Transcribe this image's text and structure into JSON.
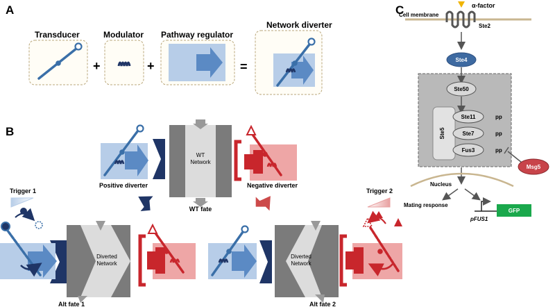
{
  "panels": {
    "a": {
      "letter": "A",
      "transducer_label": "Transducer",
      "modulator_label": "Modulator",
      "regulator_label": "Pathway regulator",
      "diverter_label": "Network diverter",
      "plus": "+",
      "equals": "="
    },
    "b": {
      "letter": "B",
      "wt_network_line1": "WT",
      "wt_network_line2": "Network",
      "positive_diverter": "Positive diverter",
      "negative_diverter": "Negative diverter",
      "wt_fate": "WT fate",
      "trigger1": "Trigger 1",
      "trigger2": "Trigger 2",
      "diverted_line1": "Diverted",
      "diverted_line2": "Network",
      "alt_fate1": "Alt fate 1",
      "alt_fate2": "Alt fate 2"
    },
    "c": {
      "letter": "C",
      "alpha_factor": "α-factor",
      "cell_membrane": "Cell membrane",
      "ste2": "Ste2",
      "ste4": "Ste4",
      "ste50": "Ste50",
      "ste5": "Ste5",
      "ste11": "Ste11",
      "ste7": "Ste7",
      "fus3": "Fus3",
      "pp": "pp",
      "msg5": "Msg5",
      "nucleus": "Nucleus",
      "mating_response": "Mating response",
      "pfus1": "pFUS1",
      "gfp": "GFP"
    }
  },
  "colors": {
    "blue_dark": "#3a6fa8",
    "blue_light": "#b7cde8",
    "blue_arrow": "#5b8ac4",
    "navy": "#1f3566",
    "red": "#c8262c",
    "red_light": "#eea6a6",
    "grey_dark": "#7b7b7b",
    "grey_light": "#dcdcdc",
    "gfp_green": "#1aa84c",
    "msg5_red": "#c8444a",
    "ste4_blue": "#3e6aa1",
    "tan": "#c9b690"
  }
}
